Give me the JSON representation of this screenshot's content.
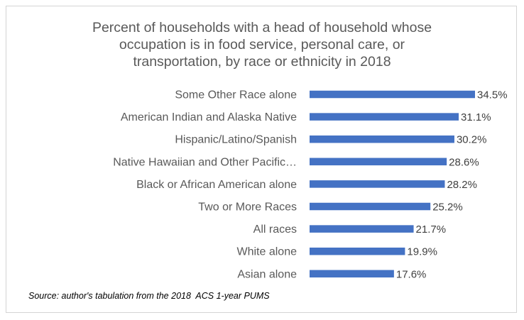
{
  "chart_data": {
    "type": "bar",
    "orientation": "horizontal",
    "title": "Percent of households with a head of household whose\noccupation is in food service, personal care, or\ntransportation, by race or ethnicity in 2018",
    "categories": [
      "Some Other Race alone",
      "American Indian and Alaska Native",
      "Hispanic/Latino/Spanish",
      "Native Hawaiian and Other Pacific…",
      "Black or African American alone",
      "Two or More Races",
      "All races",
      "White alone",
      "Asian alone"
    ],
    "values": [
      34.5,
      31.1,
      30.2,
      28.6,
      28.2,
      25.2,
      21.7,
      19.9,
      17.6
    ],
    "value_labels": [
      "34.5%",
      "31.1%",
      "30.2%",
      "28.6%",
      "28.2%",
      "25.2%",
      "21.7%",
      "19.9%",
      "17.6%"
    ],
    "xlim": [
      0,
      34.5
    ],
    "bar_color": "#4472c4",
    "grid": false,
    "source": "Source: author's tabulation from the 2018  ACS 1-year PUMS"
  }
}
